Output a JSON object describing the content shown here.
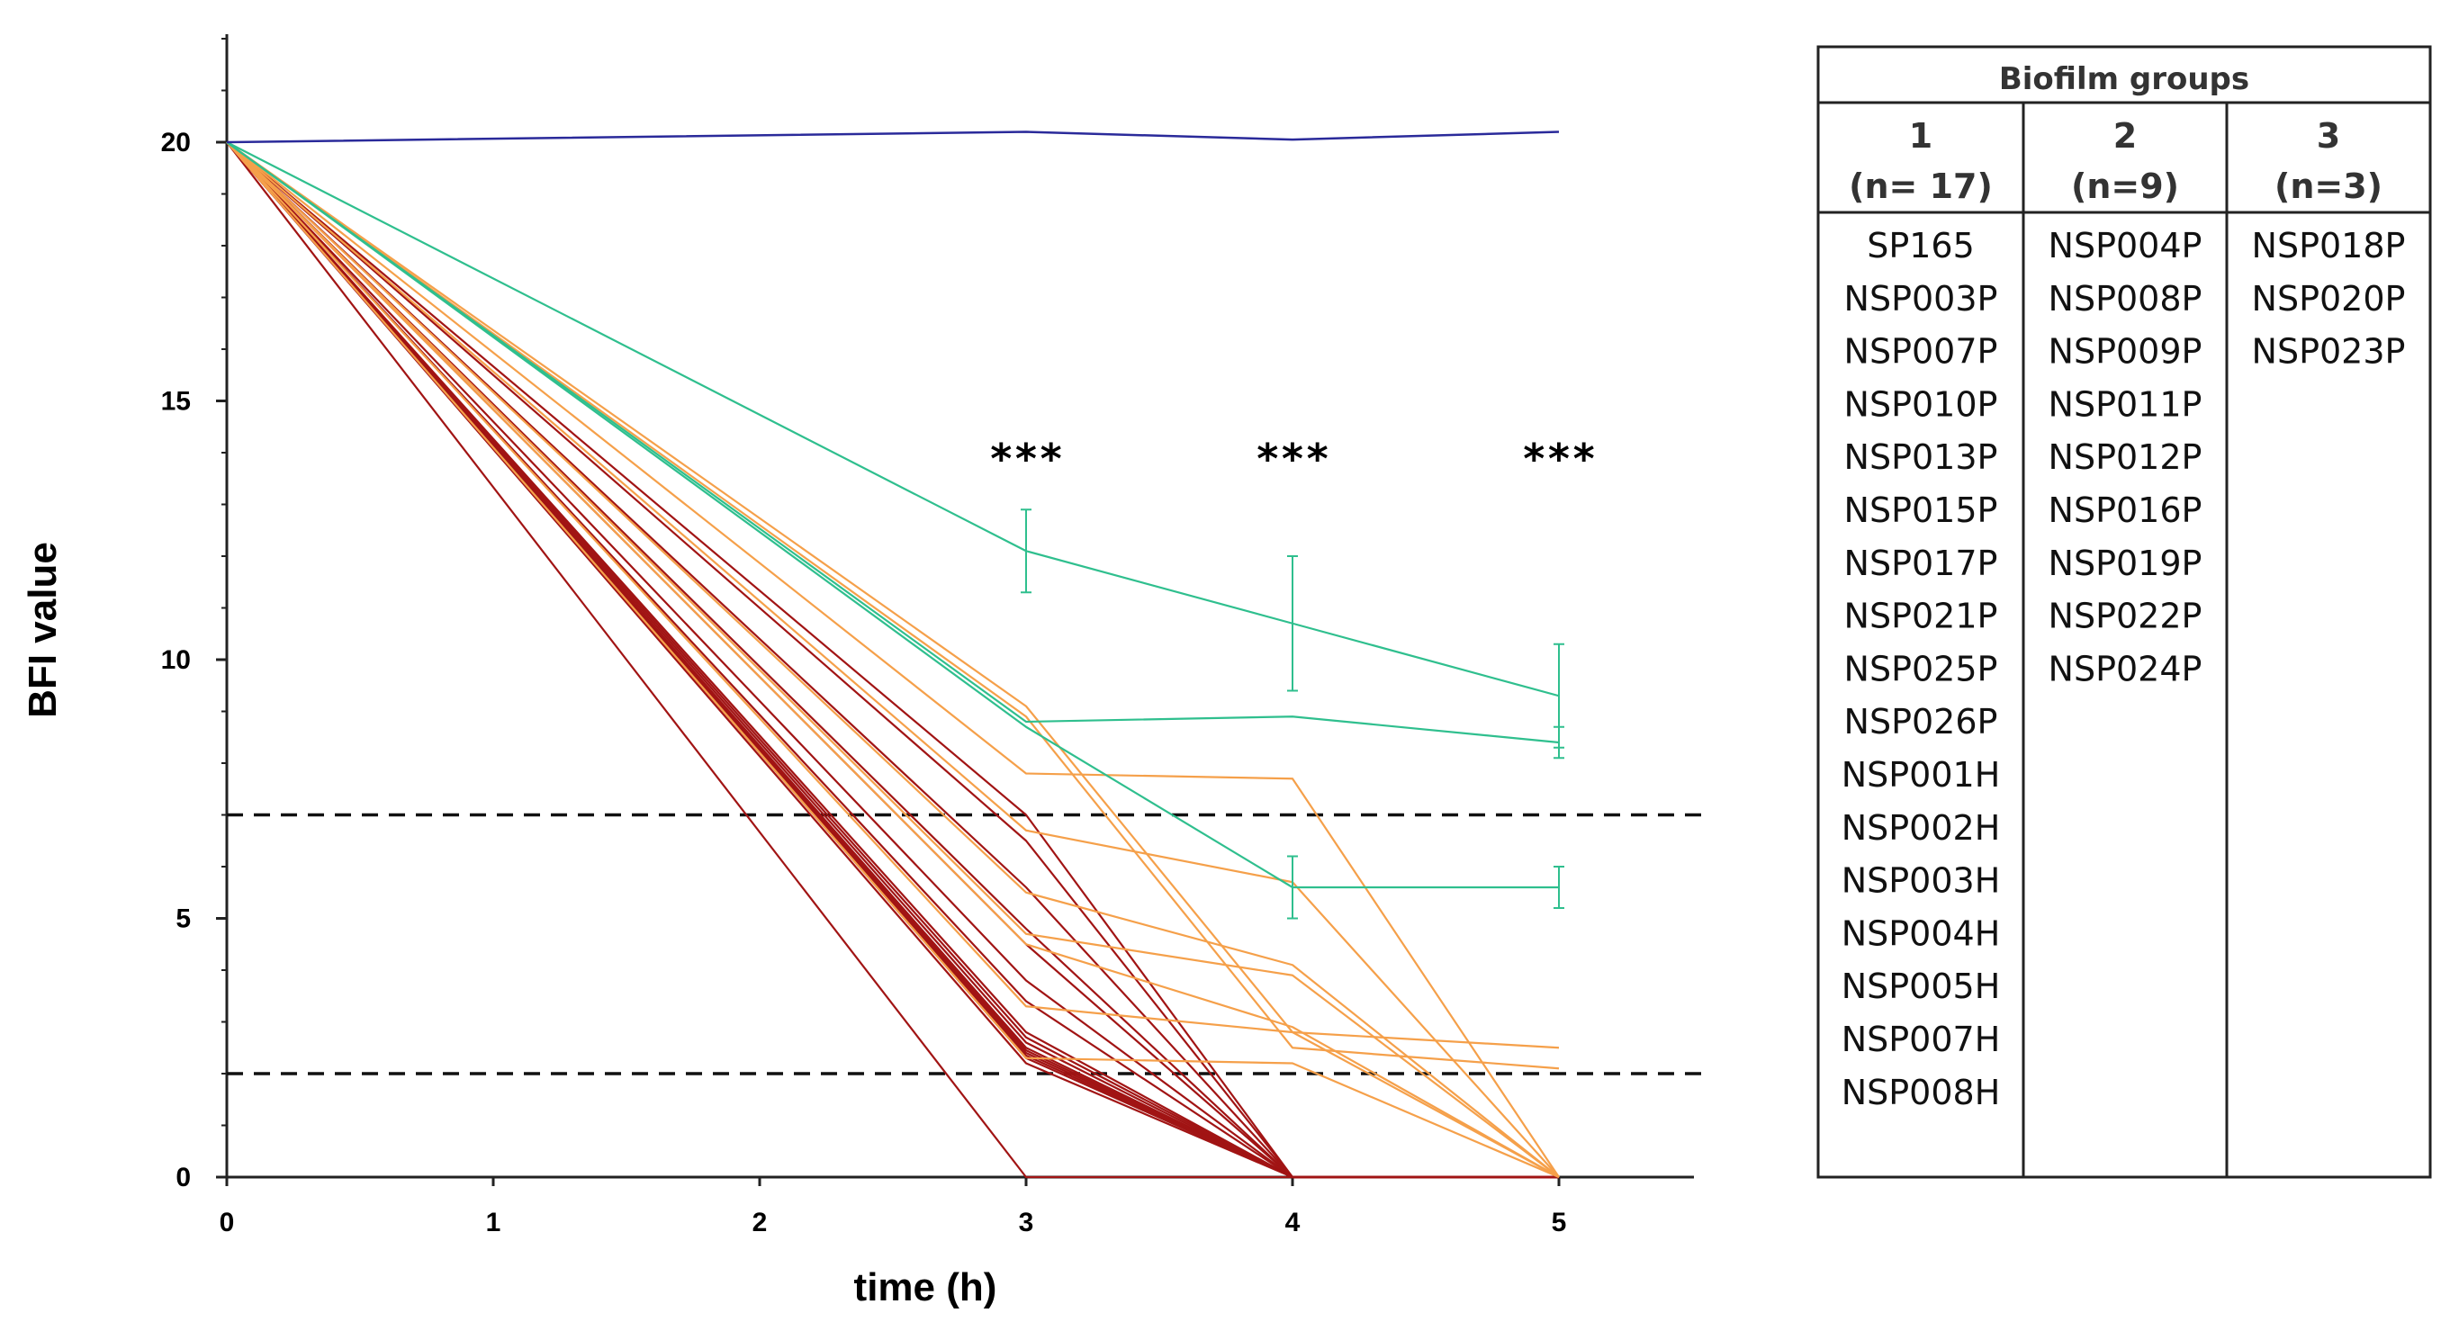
{
  "chart_data": {
    "type": "line",
    "title": "",
    "xlabel": "time (h)",
    "ylabel": "BFI value",
    "xlim": [
      0,
      5.5
    ],
    "ylim": [
      0,
      22
    ],
    "x_ticks": [
      "0",
      "1",
      "2",
      "3",
      "4",
      "5"
    ],
    "y_ticks": [
      "0",
      "5",
      "10",
      "15",
      "20"
    ],
    "threshold_lines": [
      7,
      2
    ],
    "significance": [
      {
        "x": 3,
        "label": "***"
      },
      {
        "x": 4,
        "label": "***"
      },
      {
        "x": 5,
        "label": "***"
      }
    ],
    "x": [
      0,
      3,
      4,
      5
    ],
    "colors": {
      "control": "#2a2a9a",
      "group1": "#a11414",
      "group2": "#f5a04a",
      "group3": "#2fbf8e"
    },
    "series": [
      {
        "name": "control",
        "group": "control",
        "values": [
          20,
          20.2,
          20.05,
          20.2
        ]
      },
      {
        "name": "g3-a",
        "group": "3",
        "values": [
          20,
          12.1,
          10.7,
          9.3
        ],
        "err": [
          0,
          0.8,
          1.3,
          1.0
        ]
      },
      {
        "name": "g3-b",
        "group": "3",
        "values": [
          20,
          8.8,
          8.9,
          8.4
        ],
        "err": [
          0,
          0,
          0,
          0.3
        ]
      },
      {
        "name": "g3-c",
        "group": "3",
        "values": [
          20,
          8.7,
          5.6,
          5.6
        ],
        "err": [
          0,
          0,
          0.6,
          0.4
        ]
      },
      {
        "name": "g2-a",
        "group": "2",
        "values": [
          20,
          9.1,
          2.8,
          2.5
        ]
      },
      {
        "name": "g2-b",
        "group": "2",
        "values": [
          20,
          8.9,
          2.5,
          2.1
        ]
      },
      {
        "name": "g2-c",
        "group": "2",
        "values": [
          20,
          7.8,
          7.7,
          0
        ]
      },
      {
        "name": "g2-d",
        "group": "2",
        "values": [
          20,
          6.7,
          5.7,
          0
        ]
      },
      {
        "name": "g2-e",
        "group": "2",
        "values": [
          20,
          5.5,
          4.1,
          0
        ]
      },
      {
        "name": "g2-f",
        "group": "2",
        "values": [
          20,
          4.7,
          3.9,
          0
        ]
      },
      {
        "name": "g2-g",
        "group": "2",
        "values": [
          20,
          4.5,
          2.9,
          0
        ]
      },
      {
        "name": "g2-h",
        "group": "2",
        "values": [
          20,
          3.3,
          2.8,
          0
        ]
      },
      {
        "name": "g2-i",
        "group": "2",
        "values": [
          20,
          2.3,
          2.2,
          0
        ]
      },
      {
        "name": "g1-a",
        "group": "1",
        "values": [
          20,
          0,
          0,
          0
        ]
      },
      {
        "name": "g1-b",
        "group": "1",
        "values": [
          20,
          7.0,
          0,
          0
        ]
      },
      {
        "name": "g1-c",
        "group": "1",
        "values": [
          20,
          6.5,
          0,
          0
        ]
      },
      {
        "name": "g1-d",
        "group": "1",
        "values": [
          20,
          5.6,
          0,
          0
        ]
      },
      {
        "name": "g1-e",
        "group": "1",
        "values": [
          20,
          4.8,
          0,
          0
        ]
      },
      {
        "name": "g1-f",
        "group": "1",
        "values": [
          20,
          4.5,
          0,
          0
        ]
      },
      {
        "name": "g1-g",
        "group": "1",
        "values": [
          20,
          3.8,
          0,
          0
        ]
      },
      {
        "name": "g1-h",
        "group": "1",
        "values": [
          20,
          3.4,
          0,
          0
        ]
      },
      {
        "name": "g1-i",
        "group": "1",
        "values": [
          20,
          2.8,
          0,
          0
        ]
      },
      {
        "name": "g1-j",
        "group": "1",
        "values": [
          20,
          2.7,
          0,
          0
        ]
      },
      {
        "name": "g1-k",
        "group": "1",
        "values": [
          20,
          2.6,
          0,
          0
        ]
      },
      {
        "name": "g1-l",
        "group": "1",
        "values": [
          20,
          2.5,
          0,
          0
        ]
      },
      {
        "name": "g1-m",
        "group": "1",
        "values": [
          20,
          2.45,
          0,
          0
        ]
      },
      {
        "name": "g1-n",
        "group": "1",
        "values": [
          20,
          2.4,
          0,
          0
        ]
      },
      {
        "name": "g1-o",
        "group": "1",
        "values": [
          20,
          2.35,
          0,
          0
        ]
      },
      {
        "name": "g1-p",
        "group": "1",
        "values": [
          20,
          2.3,
          0,
          0
        ]
      },
      {
        "name": "g1-q",
        "group": "1",
        "values": [
          20,
          2.2,
          0,
          0
        ]
      }
    ]
  },
  "table": {
    "title": "Biofilm groups",
    "columns": [
      {
        "group": "1",
        "n": "(n= 17)",
        "items": [
          "SP165",
          "NSP003P",
          "NSP007P",
          "NSP010P",
          "NSP013P",
          "NSP015P",
          "NSP017P",
          "NSP021P",
          "NSP025P",
          "NSP026P",
          "NSP001H",
          "NSP002H",
          "NSP003H",
          "NSP004H",
          "NSP005H",
          "NSP007H",
          "NSP008H"
        ]
      },
      {
        "group": "2",
        "n": "(n=9)",
        "items": [
          "NSP004P",
          "NSP008P",
          "NSP009P",
          "NSP011P",
          "NSP012P",
          "NSP016P",
          "NSP019P",
          "NSP022P",
          "NSP024P"
        ]
      },
      {
        "group": "3",
        "n": "(n=3)",
        "items": [
          "NSP018P",
          "NSP020P",
          "NSP023P"
        ]
      }
    ]
  }
}
